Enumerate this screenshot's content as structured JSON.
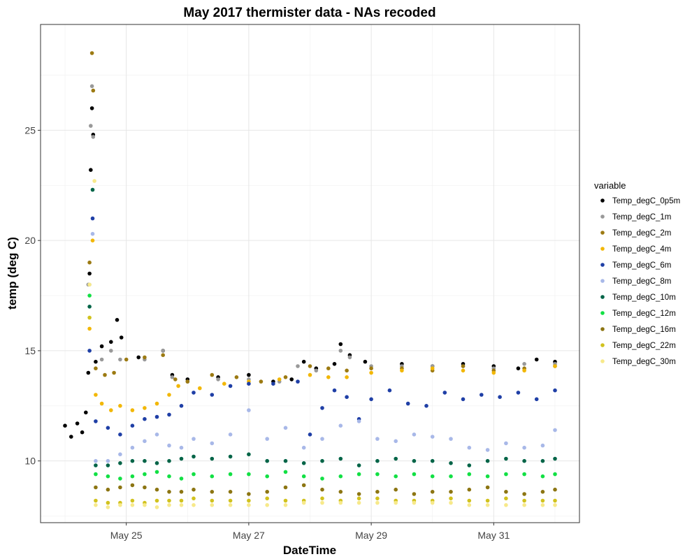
{
  "chart_data": {
    "type": "scatter",
    "title": "May 2017 thermister data - NAs recoded",
    "xlabel": "DateTime",
    "ylabel": "temp (deg C)",
    "x_unit": "days (May 2017 date)",
    "xlim": [
      23.6,
      32.4
    ],
    "ylim": [
      7.2,
      29.8
    ],
    "x_ticks": [
      {
        "value": 25,
        "label": "May 25"
      },
      {
        "value": 27,
        "label": "May 27"
      },
      {
        "value": 29,
        "label": "May 29"
      },
      {
        "value": 31,
        "label": "May 31"
      }
    ],
    "y_ticks": [
      {
        "value": 10,
        "label": "10"
      },
      {
        "value": 15,
        "label": "15"
      },
      {
        "value": 20,
        "label": "20"
      },
      {
        "value": 25,
        "label": "25"
      }
    ],
    "grid": true,
    "legend_title": "variable",
    "legend_position": "right",
    "series": [
      {
        "name": "Temp_degC_0p5m",
        "color": "#000000",
        "x": [
          24.0,
          24.1,
          24.2,
          24.28,
          24.34,
          24.38,
          24.4,
          24.42,
          24.44,
          24.46,
          24.5,
          24.6,
          24.75,
          24.85,
          24.92,
          25.2,
          25.6,
          25.75,
          26.0,
          26.5,
          27.0,
          27.4,
          27.7,
          27.9,
          28.1,
          28.4,
          28.5,
          28.65,
          28.9,
          29.5,
          30.0,
          30.5,
          31.0,
          31.4,
          31.7,
          32.0
        ],
        "y": [
          11.6,
          11.1,
          11.7,
          11.3,
          12.2,
          14.0,
          18.5,
          23.2,
          26.0,
          24.8,
          14.5,
          15.2,
          15.4,
          16.4,
          15.6,
          14.7,
          15.0,
          13.9,
          13.7,
          13.8,
          13.9,
          13.6,
          13.7,
          14.5,
          14.2,
          14.4,
          15.3,
          14.8,
          14.5,
          14.4,
          14.3,
          14.4,
          14.3,
          14.2,
          14.6,
          14.5
        ]
      },
      {
        "name": "Temp_degC_1m",
        "color": "#999999",
        "x": [
          24.38,
          24.42,
          24.44,
          24.46,
          24.6,
          24.75,
          24.9,
          25.3,
          25.6,
          25.75,
          26.0,
          26.5,
          27.0,
          27.5,
          27.8,
          28.1,
          28.5,
          28.65,
          29.0,
          29.5,
          30.0,
          30.5,
          31.0,
          31.5,
          32.0
        ],
        "y": [
          18.0,
          25.2,
          27.0,
          24.7,
          14.6,
          15.0,
          14.6,
          14.6,
          15.0,
          13.8,
          13.6,
          13.7,
          13.7,
          13.6,
          14.3,
          14.1,
          15.0,
          14.7,
          14.3,
          14.3,
          14.3,
          14.3,
          14.2,
          14.4,
          14.4
        ]
      },
      {
        "name": "Temp_degC_2m",
        "color": "#9C7A12",
        "x": [
          24.4,
          24.44,
          24.46,
          24.5,
          24.65,
          24.8,
          25.0,
          25.3,
          25.6,
          25.8,
          26.0,
          26.4,
          26.8,
          27.2,
          27.6,
          28.0,
          28.3,
          28.6,
          29.0,
          29.5,
          30.0,
          30.5,
          31.0,
          31.5,
          32.0
        ],
        "y": [
          19.0,
          28.5,
          26.8,
          14.2,
          13.9,
          14.0,
          14.6,
          14.7,
          14.8,
          13.7,
          13.6,
          13.9,
          13.8,
          13.6,
          13.8,
          14.3,
          14.2,
          14.1,
          14.2,
          14.2,
          14.1,
          14.3,
          14.1,
          14.2,
          14.3
        ]
      },
      {
        "name": "Temp_degC_4m",
        "color": "#F2B705",
        "x": [
          24.4,
          24.45,
          24.5,
          24.6,
          24.75,
          24.9,
          25.1,
          25.3,
          25.5,
          25.7,
          25.85,
          26.2,
          26.6,
          27.0,
          27.5,
          28.0,
          28.3,
          28.6,
          29.0,
          29.5,
          30.0,
          30.5,
          31.0,
          31.5,
          32.0
        ],
        "y": [
          16.0,
          20.0,
          13.0,
          12.6,
          12.3,
          12.5,
          12.3,
          12.4,
          12.6,
          13.0,
          13.4,
          13.3,
          13.5,
          13.6,
          13.7,
          13.9,
          13.8,
          13.8,
          14.0,
          14.1,
          14.2,
          14.1,
          14.0,
          14.1,
          14.3
        ]
      },
      {
        "name": "Temp_degC_6m",
        "color": "#1F3FA6",
        "x": [
          24.4,
          24.45,
          24.5,
          24.7,
          24.9,
          25.1,
          25.3,
          25.5,
          25.7,
          25.9,
          26.1,
          26.4,
          26.7,
          27.0,
          27.4,
          27.8,
          28.0,
          28.2,
          28.4,
          28.6,
          28.8,
          29.0,
          29.3,
          29.6,
          29.9,
          30.2,
          30.5,
          30.8,
          31.1,
          31.4,
          31.7,
          32.0
        ],
        "y": [
          15.0,
          21.0,
          11.8,
          11.5,
          11.2,
          11.6,
          11.9,
          12.0,
          12.1,
          12.5,
          13.1,
          13.0,
          13.4,
          13.5,
          13.5,
          13.6,
          11.2,
          12.4,
          13.2,
          12.9,
          11.9,
          12.8,
          13.2,
          12.6,
          12.5,
          13.1,
          12.8,
          13.0,
          12.9,
          13.1,
          12.8,
          13.2
        ]
      },
      {
        "name": "Temp_degC_8m",
        "color": "#A8B8E8",
        "x": [
          24.4,
          24.45,
          24.5,
          24.7,
          24.9,
          25.1,
          25.3,
          25.5,
          25.7,
          25.9,
          26.1,
          26.4,
          26.7,
          27.0,
          27.3,
          27.6,
          27.9,
          28.2,
          28.5,
          28.8,
          29.1,
          29.4,
          29.7,
          30.0,
          30.3,
          30.6,
          30.9,
          31.2,
          31.5,
          31.8,
          32.0
        ],
        "y": [
          18.0,
          20.3,
          10.0,
          10.0,
          10.3,
          10.6,
          10.9,
          11.2,
          10.7,
          10.6,
          11.0,
          10.8,
          11.2,
          12.3,
          11.0,
          11.5,
          10.6,
          11.0,
          11.6,
          11.8,
          11.0,
          10.9,
          11.2,
          11.1,
          11.0,
          10.6,
          10.5,
          10.8,
          10.6,
          10.7,
          11.4
        ]
      },
      {
        "name": "Temp_degC_10m",
        "color": "#006447",
        "x": [
          24.4,
          24.45,
          24.5,
          24.7,
          24.9,
          25.1,
          25.3,
          25.5,
          25.7,
          25.9,
          26.1,
          26.4,
          26.7,
          27.0,
          27.3,
          27.6,
          27.9,
          28.2,
          28.5,
          28.8,
          29.1,
          29.4,
          29.7,
          30.0,
          30.3,
          30.6,
          30.9,
          31.2,
          31.5,
          31.8,
          32.0
        ],
        "y": [
          17.0,
          22.3,
          9.8,
          9.8,
          9.9,
          10.0,
          10.0,
          9.9,
          10.0,
          10.1,
          10.2,
          10.1,
          10.2,
          10.3,
          10.0,
          10.0,
          9.9,
          10.0,
          10.1,
          9.8,
          10.0,
          10.1,
          10.0,
          10.0,
          9.9,
          9.8,
          10.0,
          10.1,
          10.0,
          10.0,
          10.1
        ]
      },
      {
        "name": "Temp_degC_12m",
        "color": "#12E044",
        "x": [
          24.4,
          24.5,
          24.7,
          24.9,
          25.1,
          25.3,
          25.5,
          25.7,
          25.9,
          26.1,
          26.4,
          26.7,
          27.0,
          27.3,
          27.6,
          27.9,
          28.2,
          28.5,
          28.8,
          29.1,
          29.4,
          29.7,
          30.0,
          30.3,
          30.6,
          30.9,
          31.2,
          31.5,
          31.8,
          32.0
        ],
        "y": [
          17.5,
          9.4,
          9.3,
          9.2,
          9.3,
          9.4,
          9.5,
          9.3,
          9.2,
          9.4,
          9.3,
          9.4,
          9.4,
          9.3,
          9.5,
          9.3,
          9.2,
          9.3,
          9.4,
          9.4,
          9.3,
          9.4,
          9.3,
          9.3,
          9.4,
          9.3,
          9.4,
          9.4,
          9.3,
          9.4
        ]
      },
      {
        "name": "Temp_degC_16m",
        "color": "#8C7512",
        "x": [
          24.5,
          24.7,
          24.9,
          25.1,
          25.3,
          25.5,
          25.7,
          25.9,
          26.1,
          26.4,
          26.7,
          27.0,
          27.3,
          27.6,
          27.9,
          28.2,
          28.5,
          28.8,
          29.1,
          29.4,
          29.7,
          30.0,
          30.3,
          30.6,
          30.9,
          31.2,
          31.5,
          31.8,
          32.0
        ],
        "y": [
          8.8,
          8.7,
          8.8,
          8.9,
          8.8,
          8.7,
          8.6,
          8.6,
          8.7,
          8.6,
          8.6,
          8.5,
          8.6,
          8.8,
          8.9,
          8.7,
          8.6,
          8.5,
          8.6,
          8.7,
          8.5,
          8.6,
          8.6,
          8.7,
          8.8,
          8.6,
          8.5,
          8.6,
          8.7
        ]
      },
      {
        "name": "Temp_degC_22m",
        "color": "#D1C21E",
        "x": [
          24.4,
          24.5,
          24.7,
          24.9,
          25.1,
          25.3,
          25.5,
          25.7,
          25.9,
          26.1,
          26.4,
          26.7,
          27.0,
          27.3,
          27.6,
          27.9,
          28.2,
          28.5,
          28.8,
          29.1,
          29.4,
          29.7,
          30.0,
          30.3,
          30.6,
          30.9,
          31.2,
          31.5,
          31.8,
          32.0
        ],
        "y": [
          16.5,
          8.2,
          8.1,
          8.1,
          8.2,
          8.1,
          8.2,
          8.2,
          8.2,
          8.3,
          8.2,
          8.2,
          8.2,
          8.3,
          8.2,
          8.2,
          8.3,
          8.2,
          8.3,
          8.3,
          8.2,
          8.2,
          8.2,
          8.3,
          8.2,
          8.2,
          8.3,
          8.2,
          8.2,
          8.2
        ]
      },
      {
        "name": "Temp_degC_30m",
        "color": "#F7E98A",
        "x": [
          24.4,
          24.48,
          24.5,
          24.7,
          24.9,
          25.1,
          25.3,
          25.5,
          25.7,
          25.9,
          26.1,
          26.4,
          26.7,
          27.0,
          27.3,
          27.6,
          27.9,
          28.2,
          28.5,
          28.8,
          29.1,
          29.4,
          29.7,
          30.0,
          30.3,
          30.6,
          30.9,
          31.2,
          31.5,
          31.8,
          32.0
        ],
        "y": [
          18.0,
          22.7,
          8.0,
          7.9,
          8.0,
          8.0,
          8.0,
          7.9,
          8.0,
          8.0,
          8.0,
          8.0,
          8.0,
          8.0,
          8.0,
          8.0,
          8.1,
          8.1,
          8.1,
          8.1,
          8.1,
          8.1,
          8.1,
          8.1,
          8.1,
          8.0,
          8.0,
          8.0,
          8.0,
          8.0,
          8.0
        ]
      }
    ]
  }
}
